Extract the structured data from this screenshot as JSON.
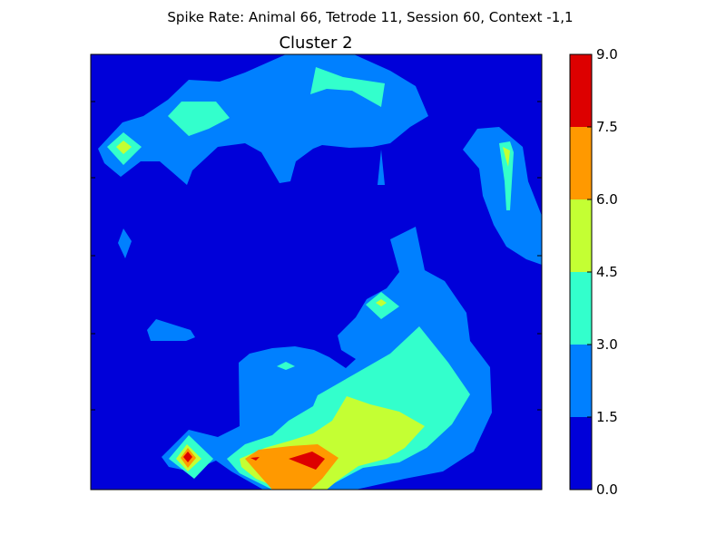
{
  "chart_data": {
    "type": "heatmap",
    "suptitle": "Spike Rate: Animal 66, Tetrode 11, Session 60, Context -1,1",
    "title": "Cluster 2",
    "xlabel": "",
    "ylabel": "",
    "colorbar": {
      "ticks": [
        "0.0",
        "1.5",
        "3.0",
        "4.5",
        "6.0",
        "7.5",
        "9.0"
      ],
      "range": [
        0.0,
        9.0
      ],
      "levels": [
        {
          "from": 0.0,
          "to": 1.5,
          "color": "#0000d9"
        },
        {
          "from": 1.5,
          "to": 3.0,
          "color": "#0080ff"
        },
        {
          "from": 3.0,
          "to": 4.5,
          "color": "#33ffcc"
        },
        {
          "from": 4.5,
          "to": 6.0,
          "color": "#c4ff33"
        },
        {
          "from": 6.0,
          "to": 7.5,
          "color": "#ff9900"
        },
        {
          "from": 7.5,
          "to": 9.0,
          "color": "#dd0000"
        }
      ]
    },
    "grid": false,
    "x_tick_labels_visible": false,
    "y_tick_labels_visible": false
  }
}
